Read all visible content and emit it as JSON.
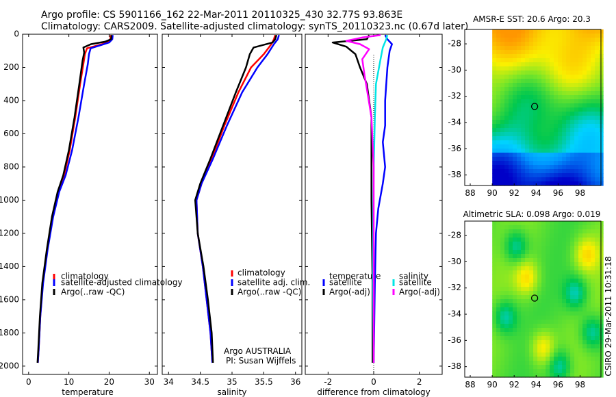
{
  "header": {
    "line1": "Argo profile: CS 5901166_162 22-Mar-2011 20110325_430 32.77S 93.863E",
    "line2": "Climatology: CARS2009. Satellite-adjusted climatology: synTS_20110323.nc (0.67d later)"
  },
  "footer": {
    "credit": "CSIRO 29-Mar-2011 10:31:18"
  },
  "chart_data": [
    {
      "type": "line",
      "xlabel": "temperature",
      "xlim": [
        -1.5,
        32
      ],
      "xticks": [
        0,
        10,
        20,
        30
      ],
      "ylim": [
        0,
        2050
      ],
      "yticks": [
        0,
        200,
        400,
        600,
        800,
        1000,
        1200,
        1400,
        1600,
        1800,
        2000
      ],
      "y_reversed": true,
      "legend": [
        "climatology",
        "satellite-adjusted climatology",
        "Argo(..raw -QC)"
      ],
      "series": [
        {
          "name": "climatology",
          "color": "#ff0000",
          "points": [
            [
              20.4,
              5
            ],
            [
              20.3,
              30
            ],
            [
              19.5,
              50
            ],
            [
              17.5,
              65
            ],
            [
              14.5,
              85
            ],
            [
              14.0,
              120
            ],
            [
              13.6,
              180
            ],
            [
              12.8,
              300
            ],
            [
              11.6,
              500
            ],
            [
              10.2,
              700
            ],
            [
              8.8,
              850
            ],
            [
              7.3,
              950
            ],
            [
              5.9,
              1100
            ],
            [
              4.6,
              1300
            ],
            [
              3.5,
              1500
            ],
            [
              2.9,
              1700
            ],
            [
              2.5,
              1900
            ],
            [
              2.3,
              1980
            ]
          ]
        },
        {
          "name": "satellite-adjusted climatology",
          "color": "#0000ff",
          "points": [
            [
              20.9,
              5
            ],
            [
              20.8,
              30
            ],
            [
              20.0,
              50
            ],
            [
              18.0,
              65
            ],
            [
              15.4,
              85
            ],
            [
              15.0,
              120
            ],
            [
              14.7,
              180
            ],
            [
              13.8,
              300
            ],
            [
              12.4,
              500
            ],
            [
              10.8,
              700
            ],
            [
              9.2,
              850
            ],
            [
              7.6,
              950
            ],
            [
              6.1,
              1100
            ],
            [
              4.7,
              1300
            ],
            [
              3.6,
              1500
            ],
            [
              2.9,
              1700
            ],
            [
              2.5,
              1900
            ],
            [
              2.3,
              1980
            ]
          ]
        },
        {
          "name": "Argo(..raw -QC)",
          "color": "#000000",
          "points": [
            [
              20.6,
              5
            ],
            [
              20.5,
              30
            ],
            [
              19.0,
              45
            ],
            [
              15.5,
              60
            ],
            [
              13.6,
              80
            ],
            [
              13.8,
              110
            ],
            [
              13.4,
              160
            ],
            [
              12.6,
              300
            ],
            [
              11.4,
              500
            ],
            [
              10.0,
              700
            ],
            [
              8.6,
              850
            ],
            [
              7.2,
              950
            ],
            [
              5.8,
              1100
            ],
            [
              4.5,
              1300
            ],
            [
              3.4,
              1500
            ],
            [
              2.8,
              1700
            ],
            [
              2.4,
              1900
            ],
            [
              2.2,
              1980
            ]
          ]
        }
      ]
    },
    {
      "type": "line",
      "xlabel": "salinity",
      "xlim": [
        33.9,
        36.1
      ],
      "xticks": [
        34,
        34.5,
        35,
        35.5,
        36
      ],
      "ylim": [
        0,
        2050
      ],
      "y_reversed": true,
      "legend": [
        "climatology",
        "satellite adj. clim.",
        "Argo(..raw -QC)"
      ],
      "annotation": [
        "Argo AUSTRALIA",
        "PI: Susan Wijffels"
      ],
      "series": [
        {
          "name": "climatology",
          "color": "#ff0000",
          "points": [
            [
              35.68,
              5
            ],
            [
              35.66,
              30
            ],
            [
              35.62,
              60
            ],
            [
              35.5,
              120
            ],
            [
              35.3,
              200
            ],
            [
              35.1,
              350
            ],
            [
              34.88,
              550
            ],
            [
              34.68,
              750
            ],
            [
              34.52,
              900
            ],
            [
              34.44,
              1000
            ],
            [
              34.46,
              1200
            ],
            [
              34.54,
              1400
            ],
            [
              34.6,
              1600
            ],
            [
              34.66,
              1800
            ],
            [
              34.69,
              1980
            ]
          ]
        },
        {
          "name": "satellite adj. clim.",
          "color": "#0000ff",
          "points": [
            [
              35.74,
              5
            ],
            [
              35.72,
              30
            ],
            [
              35.66,
              60
            ],
            [
              35.56,
              120
            ],
            [
              35.4,
              200
            ],
            [
              35.16,
              350
            ],
            [
              34.92,
              550
            ],
            [
              34.7,
              750
            ],
            [
              34.52,
              900
            ],
            [
              34.44,
              1000
            ],
            [
              34.46,
              1200
            ],
            [
              34.54,
              1400
            ],
            [
              34.6,
              1600
            ],
            [
              34.66,
              1800
            ],
            [
              34.69,
              1980
            ]
          ]
        },
        {
          "name": "Argo(..raw -QC)",
          "color": "#000000",
          "points": [
            [
              35.7,
              5
            ],
            [
              35.68,
              30
            ],
            [
              35.64,
              50
            ],
            [
              35.34,
              80
            ],
            [
              35.28,
              120
            ],
            [
              35.22,
              200
            ],
            [
              35.06,
              350
            ],
            [
              34.86,
              550
            ],
            [
              34.66,
              750
            ],
            [
              34.5,
              900
            ],
            [
              34.42,
              1000
            ],
            [
              34.46,
              1200
            ],
            [
              34.55,
              1400
            ],
            [
              34.62,
              1600
            ],
            [
              34.68,
              1800
            ],
            [
              34.7,
              1980
            ]
          ]
        }
      ]
    },
    {
      "type": "line",
      "xlabel": "difference from climatology",
      "xlim": [
        -3.0,
        3.0
      ],
      "xticks": [
        -2,
        0,
        2
      ],
      "ylim": [
        0,
        2050
      ],
      "y_reversed": true,
      "legend_temperature": {
        "title": "temperature",
        "entries": [
          "satellite",
          "Argo(-adj)"
        ]
      },
      "legend_salinity": {
        "title": "salinity",
        "entries": [
          "satellite",
          "Argo(-adj)"
        ]
      },
      "series": [
        {
          "name": "temperature satellite",
          "color": "#0000ff",
          "points": [
            [
              0.5,
              5
            ],
            [
              0.6,
              30
            ],
            [
              0.8,
              60
            ],
            [
              0.7,
              100
            ],
            [
              0.6,
              200
            ],
            [
              0.5,
              400
            ],
            [
              0.5,
              550
            ],
            [
              0.4,
              650
            ],
            [
              0.5,
              800
            ],
            [
              0.4,
              900
            ],
            [
              0.2,
              1050
            ],
            [
              0.1,
              1200
            ],
            [
              0.05,
              1500
            ],
            [
              0.0,
              1980
            ]
          ]
        },
        {
          "name": "temperature Argo(-adj)",
          "color": "#000000",
          "points": [
            [
              -0.2,
              5
            ],
            [
              -0.3,
              30
            ],
            [
              -1.8,
              50
            ],
            [
              -1.2,
              75
            ],
            [
              -0.8,
              120
            ],
            [
              -0.6,
              200
            ],
            [
              -0.3,
              300
            ],
            [
              -0.1,
              500
            ],
            [
              -0.1,
              800
            ],
            [
              -0.1,
              1000
            ],
            [
              -0.05,
              1500
            ],
            [
              -0.05,
              1980
            ]
          ]
        },
        {
          "name": "salinity satellite",
          "color": "#00e5e5",
          "points": [
            [
              0.6,
              5
            ],
            [
              0.55,
              30
            ],
            [
              0.4,
              80
            ],
            [
              0.3,
              150
            ],
            [
              0.1,
              300
            ],
            [
              0.05,
              500
            ],
            [
              0.0,
              800
            ],
            [
              -0.02,
              1100
            ],
            [
              -0.03,
              1500
            ],
            [
              0.0,
              1980
            ]
          ]
        },
        {
          "name": "salinity Argo(-adj)",
          "color": "#ff00ff",
          "points": [
            [
              0.3,
              5
            ],
            [
              -0.5,
              20
            ],
            [
              -1.2,
              40
            ],
            [
              -0.6,
              60
            ],
            [
              -0.2,
              90
            ],
            [
              -0.5,
              150
            ],
            [
              -0.4,
              250
            ],
            [
              -0.3,
              330
            ],
            [
              -0.1,
              500
            ],
            [
              0.0,
              800
            ],
            [
              0.0,
              1980
            ]
          ]
        }
      ]
    },
    {
      "type": "heatmap",
      "title": "AMSR-E SST: 20.6 Argo: 20.3",
      "xlim": [
        87.5,
        99.9
      ],
      "ylim": [
        -38.8,
        -26.9
      ],
      "xticks": [
        88,
        90,
        92,
        94,
        96,
        98
      ],
      "yticks": [
        -28,
        -30,
        -32,
        -34,
        -36,
        -38
      ],
      "data_x_range": [
        90,
        99.9
      ],
      "argo_position": {
        "lon": 93.863,
        "lat": -32.77
      }
    },
    {
      "type": "heatmap",
      "title": "Altimetric SLA: 0.098 Argo: 0.019",
      "xlim": [
        87.5,
        99.9
      ],
      "ylim": [
        -38.8,
        -26.9
      ],
      "xticks": [
        88,
        90,
        92,
        94,
        96,
        98
      ],
      "yticks": [
        -28,
        -30,
        -32,
        -34,
        -36,
        -38
      ],
      "data_x_range": [
        90,
        99.9
      ],
      "argo_position": {
        "lon": 93.863,
        "lat": -32.77
      }
    }
  ]
}
